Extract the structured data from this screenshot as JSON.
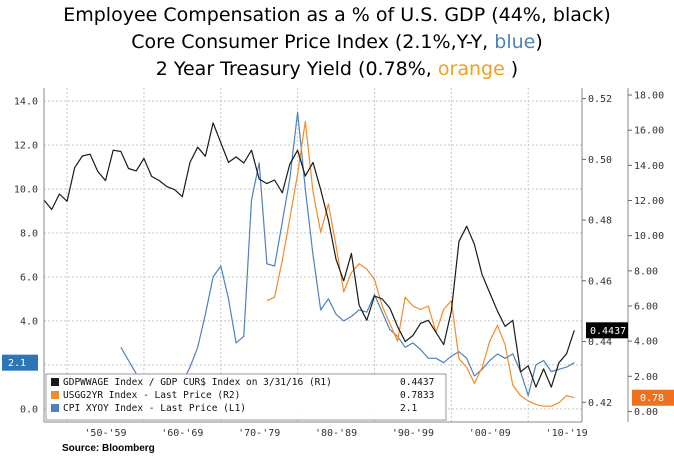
{
  "title": {
    "line1": "Employee Compensation as a % of  U.S. GDP (44%, black)",
    "line2_pre": "Core Consumer Price Index (2.1%,Y-Y, ",
    "line2_hl": "blue",
    "line2_post": ")",
    "line3_pre": "2 Year Treasury Yield (0.78%, ",
    "line3_hl": "orange",
    "line3_post": " )"
  },
  "source": "Source:  Bloomberg",
  "colors": {
    "black_series": "#1a1a1a",
    "blue_series": "#4f81bd",
    "orange_series": "#f28c28",
    "grid": "#c8c8c8"
  },
  "chart_data": {
    "type": "line",
    "x_tick_labels": [
      "'50-'59",
      "'60-'69",
      "'70-'79",
      "'80-'89",
      "'90-'99",
      "'00-'09",
      "'10-'19"
    ],
    "xlim": [
      1947,
      2017
    ],
    "left_axis": {
      "ylim": [
        -0.6,
        14.6
      ],
      "ticks": [
        "0.0",
        "2.0",
        "4.0",
        "6.0",
        "8.0",
        "10.0",
        "12.0",
        "14.0"
      ]
    },
    "middle_axis": {
      "ylim": [
        0.4135,
        0.5235
      ],
      "ticks": [
        "0.42",
        "0.44",
        "0.46",
        "0.48",
        "0.50",
        "0.52"
      ]
    },
    "right_axis": {
      "ylim": [
        -0.6,
        18.4
      ],
      "ticks": [
        "0.00",
        "2.00",
        "4.00",
        "6.00",
        "8.00",
        "10.00",
        "12.00",
        "14.00",
        "16.00",
        "18.00"
      ]
    },
    "last_value_tags": {
      "cpi": "2.1",
      "compensation": "0.4437",
      "treasury": "0.78"
    },
    "legend": [
      {
        "name": "GDPWWAGE Index / GDP CUR$ Index on 3/31/16 (R1)",
        "value": "0.4437"
      },
      {
        "name": "USGG2YR Index - Last Price (R2)",
        "value": "0.7833"
      },
      {
        "name": "CPI XYOY Index - Last Price (L1)",
        "value": "2.1"
      }
    ],
    "series": [
      {
        "key": "compensation",
        "axis": "middle",
        "x": [
          1947,
          1948,
          1949,
          1950,
          1951,
          1952,
          1953,
          1954,
          1955,
          1956,
          1957,
          1958,
          1959,
          1960,
          1961,
          1962,
          1963,
          1964,
          1965,
          1966,
          1967,
          1968,
          1969,
          1970,
          1971,
          1972,
          1973,
          1974,
          1975,
          1976,
          1977,
          1978,
          1979,
          1980,
          1981,
          1982,
          1983,
          1984,
          1985,
          1986,
          1987,
          1988,
          1989,
          1990,
          1991,
          1992,
          1993,
          1994,
          1995,
          1996,
          1997,
          1998,
          1999,
          2000,
          2001,
          2002,
          2003,
          2004,
          2005,
          2006,
          2007,
          2008,
          2009,
          2010,
          2011,
          2012,
          2013,
          2014,
          2015,
          2016
        ],
        "y": [
          0.4866,
          0.4835,
          0.4886,
          0.4862,
          0.4973,
          0.5011,
          0.5017,
          0.496,
          0.493,
          0.503,
          0.5026,
          0.497,
          0.4962,
          0.5003,
          0.4944,
          0.493,
          0.491,
          0.49,
          0.4877,
          0.499,
          0.504,
          0.501,
          0.512,
          0.5055,
          0.499,
          0.5008,
          0.4988,
          0.503,
          0.4935,
          0.492,
          0.4932,
          0.489,
          0.4985,
          0.503,
          0.4945,
          0.499,
          0.49,
          0.48,
          0.467,
          0.46,
          0.469,
          0.452,
          0.447,
          0.455,
          0.454,
          0.451,
          0.445,
          0.44,
          0.442,
          0.446,
          0.447,
          0.443,
          0.439,
          0.45,
          0.473,
          0.478,
          0.472,
          0.462,
          0.456,
          0.45,
          0.445,
          0.447,
          0.43,
          0.432,
          0.425,
          0.431,
          0.425,
          0.433,
          0.436,
          0.4437
        ]
      },
      {
        "key": "cpi",
        "axis": "left",
        "x": [
          1957,
          1958,
          1959,
          1960,
          1961,
          1962,
          1963,
          1964,
          1965,
          1966,
          1967,
          1968,
          1969,
          1970,
          1971,
          1972,
          1973,
          1974,
          1975,
          1976,
          1977,
          1978,
          1979,
          1980,
          1981,
          1982,
          1983,
          1984,
          1985,
          1986,
          1987,
          1988,
          1989,
          1990,
          1991,
          1992,
          1993,
          1994,
          1995,
          1996,
          1997,
          1998,
          1999,
          2000,
          2001,
          2002,
          2003,
          2004,
          2005,
          2006,
          2007,
          2008,
          2009,
          2010,
          2011,
          2012,
          2013,
          2014,
          2015,
          2016
        ],
        "y": [
          2.8,
          2.2,
          1.6,
          1.4,
          1.2,
          1.3,
          1.2,
          1.3,
          1.2,
          1.9,
          2.8,
          4.3,
          6.0,
          6.5,
          5.0,
          3.0,
          3.3,
          9.5,
          11.2,
          6.6,
          6.5,
          8.5,
          10.5,
          13.5,
          10.0,
          7.0,
          4.5,
          5.0,
          4.3,
          4.0,
          4.2,
          4.5,
          4.4,
          5.2,
          4.4,
          3.6,
          3.3,
          2.8,
          3.0,
          2.7,
          2.3,
          2.3,
          2.1,
          2.4,
          2.6,
          2.3,
          1.5,
          1.8,
          2.2,
          2.5,
          2.3,
          2.5,
          1.7,
          0.6,
          2.0,
          2.2,
          1.7,
          1.8,
          1.9,
          2.1
        ]
      },
      {
        "key": "treasury",
        "axis": "right",
        "x": [
          1976,
          1977,
          1978,
          1979,
          1980,
          1981,
          1982,
          1983,
          1984,
          1985,
          1986,
          1987,
          1988,
          1989,
          1990,
          1991,
          1992,
          1993,
          1994,
          1995,
          1996,
          1997,
          1998,
          1999,
          2000,
          2001,
          2002,
          2003,
          2004,
          2005,
          2006,
          2007,
          2008,
          2009,
          2010,
          2011,
          2012,
          2013,
          2014,
          2015,
          2016
        ],
        "y": [
          6.3,
          6.5,
          8.6,
          11.0,
          13.5,
          16.5,
          12.5,
          10.2,
          11.8,
          9.4,
          6.8,
          7.9,
          8.4,
          8.1,
          7.5,
          6.0,
          5.0,
          4.0,
          6.5,
          6.0,
          5.8,
          6.0,
          4.5,
          5.8,
          6.3,
          3.0,
          2.5,
          1.6,
          2.5,
          4.0,
          4.9,
          3.8,
          1.5,
          0.9,
          0.6,
          0.4,
          0.3,
          0.3,
          0.5,
          0.9,
          0.78
        ]
      }
    ]
  }
}
